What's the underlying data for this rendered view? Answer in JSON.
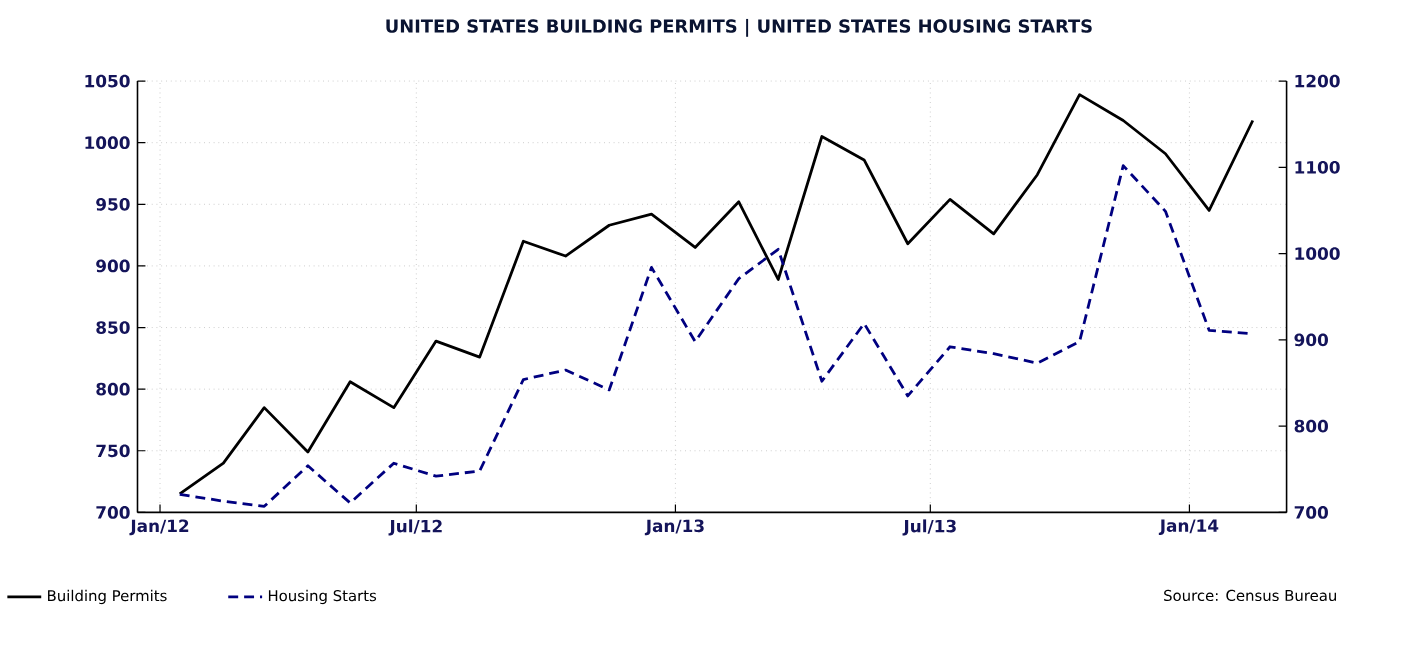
{
  "chart_data": {
    "type": "line",
    "title": "UNITED STATES BUILDING PERMITS |  UNITED STATES HOUSING STARTS",
    "x": [
      "2012-01-15",
      "2012-02-15",
      "2012-03-15",
      "2012-04-15",
      "2012-05-15",
      "2012-06-15",
      "2012-07-15",
      "2012-08-15",
      "2012-09-15",
      "2012-10-15",
      "2012-11-15",
      "2012-12-15",
      "2013-01-15",
      "2013-02-15",
      "2013-03-15",
      "2013-04-15",
      "2013-05-15",
      "2013-06-15",
      "2013-07-15",
      "2013-08-15",
      "2013-09-15",
      "2013-10-15",
      "2013-11-15",
      "2013-12-15",
      "2014-01-15",
      "2014-02-15"
    ],
    "series": [
      {
        "name": "Building Permits",
        "color": "#000000",
        "line_style": "solid",
        "values": [
          715,
          740,
          785,
          749,
          806,
          785,
          839,
          826,
          920,
          908,
          933,
          942,
          915,
          952,
          889,
          1005,
          986,
          918,
          954,
          926,
          974,
          1039,
          1018,
          991,
          945,
          1018
        ]
      },
      {
        "name": "Housing Starts",
        "color": "#000080",
        "line_style": "dashed",
        "axis": "y2",
        "values": [
          721,
          713,
          707,
          754,
          711,
          757,
          742,
          748,
          854,
          865,
          842,
          984,
          898,
          971,
          1005,
          852,
          919,
          835,
          892,
          884,
          873,
          898,
          1102,
          1049,
          911,
          907
        ]
      }
    ],
    "xlim": [
      "2011-12-16",
      "2014-03-11"
    ],
    "xticks": [
      {
        "value": "2012-01-01",
        "label": "Jan/12"
      },
      {
        "value": "2012-07-01",
        "label": "Jul/12"
      },
      {
        "value": "2013-01-01",
        "label": "Jan/13"
      },
      {
        "value": "2013-07-01",
        "label": "Jul/13"
      },
      {
        "value": "2014-01-01",
        "label": "Jan/14"
      }
    ],
    "ylim": [
      700,
      1050
    ],
    "yticks": [
      700,
      750,
      800,
      850,
      900,
      950,
      1000,
      1050
    ],
    "y2lim": [
      700,
      1200
    ],
    "y2ticks": [
      700,
      800,
      900,
      1000,
      1100,
      1200
    ],
    "grid": true,
    "legend": "bottom left",
    "marker": "none",
    "annotations": [
      "Source: Census Bureau"
    ]
  }
}
